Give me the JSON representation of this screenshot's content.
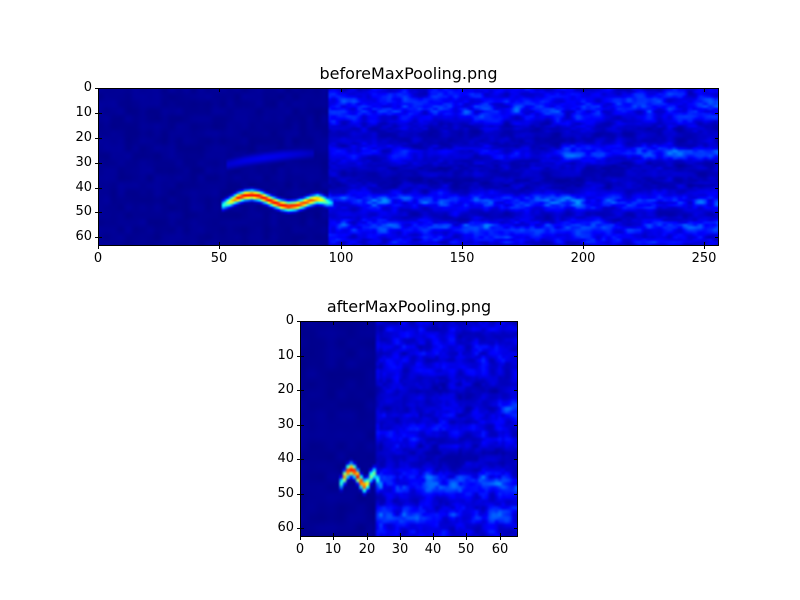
{
  "figure": {
    "background": "#ffffff",
    "frame_color": "#000000",
    "text_color": "#000000"
  },
  "chart_data": [
    {
      "type": "heatmap",
      "title": "beforeMaxPooling.png",
      "colormap": "jet",
      "xlabel": "",
      "ylabel": "",
      "x_ticks": [
        0,
        50,
        100,
        150,
        200,
        250
      ],
      "y_ticks": [
        0,
        10,
        20,
        30,
        40,
        50,
        60
      ],
      "x_range": [
        0,
        256
      ],
      "y_range": [
        0,
        63.5
      ],
      "y_axis_inverted": true,
      "grid_cols": 256,
      "grid_rows": 64,
      "background_value": 0.01,
      "clean_region": {
        "end_col": 95,
        "base": 0.01,
        "noise_amp": 0.02
      },
      "noise": {
        "seed": 41237,
        "start_col": 95,
        "scale_cols": 4.2,
        "scale_rows": 2.3,
        "ambient": 0.075,
        "floor": 0.35,
        "gain": 1.15,
        "sharpen": 1.4
      },
      "bands": [
        {
          "row": 5,
          "half_width": 4.0,
          "amp": 0.085
        },
        {
          "row": 11,
          "half_width": 2.5,
          "amp": 0.055
        },
        {
          "row": 26,
          "half_width": 2.2,
          "amp": 0.05
        },
        {
          "row": 26,
          "half_width": 1.6,
          "amp": 0.11,
          "from_col": 192
        },
        {
          "row": 45.5,
          "half_width": 2.4,
          "amp": 0.13
        },
        {
          "row": 56,
          "half_width": 2.2,
          "amp": 0.11
        },
        {
          "row": 61.5,
          "half_width": 1.8,
          "amp": 0.06
        }
      ],
      "blobs": [],
      "streaks": [
        {
          "sigma": 1.6,
          "points": [
            [
              53,
              30.5,
              0.08
            ],
            [
              60,
              29,
              0.1
            ],
            [
              68,
              27.8,
              0.11
            ],
            [
              76,
              26.8,
              0.1
            ],
            [
              83,
              26.2,
              0.08
            ],
            [
              88,
              26,
              0.06
            ]
          ]
        }
      ],
      "chirp": {
        "sigma": 1.25,
        "points": [
          [
            51,
            47.0,
            0.38
          ],
          [
            54,
            45.6,
            0.62
          ],
          [
            57,
            44.1,
            0.85
          ],
          [
            60,
            43.1,
            0.88
          ],
          [
            63,
            42.8,
            0.88
          ],
          [
            66,
            43.3,
            0.88
          ],
          [
            69,
            44.5,
            0.88
          ],
          [
            72,
            45.8,
            0.88
          ],
          [
            75,
            46.9,
            0.88
          ],
          [
            78,
            47.5,
            0.88
          ],
          [
            81,
            47.2,
            0.85
          ],
          [
            84,
            46.3,
            0.82
          ],
          [
            87,
            45.2,
            0.8
          ],
          [
            90,
            44.5,
            0.72
          ],
          [
            92,
            44.9,
            0.6
          ],
          [
            94,
            45.7,
            0.45
          ],
          [
            96,
            46.1,
            0.3
          ]
        ]
      }
    },
    {
      "type": "heatmap",
      "title": "afterMaxPooling.png",
      "colormap": "jet",
      "xlabel": "",
      "ylabel": "",
      "x_ticks": [
        0,
        10,
        20,
        30,
        40,
        50,
        60
      ],
      "y_ticks": [
        0,
        10,
        20,
        30,
        40,
        50,
        60
      ],
      "x_range": [
        0,
        65.5
      ],
      "y_range": [
        0,
        62.5
      ],
      "y_axis_inverted": true,
      "grid_cols": 66,
      "grid_rows": 63,
      "background_value": 0.01,
      "clean_region": {
        "end_col": 23,
        "base": 0.01,
        "noise_amp": 0.02
      },
      "noise": {
        "seed": 90211,
        "start_col": 23,
        "scale_cols": 2.4,
        "scale_rows": 1.8,
        "ambient": 0.075,
        "floor": 0.35,
        "gain": 1.15,
        "sharpen": 1.4
      },
      "bands": [
        {
          "row": 8,
          "half_width": 8.0,
          "amp": 0.045
        },
        {
          "row": 31,
          "half_width": 3.5,
          "amp": 0.05
        },
        {
          "row": 47,
          "half_width": 2.4,
          "amp": 0.13
        },
        {
          "row": 56.5,
          "half_width": 2.2,
          "amp": 0.11
        },
        {
          "row": 62.5,
          "half_width": 1.5,
          "amp": 0.05
        }
      ],
      "blobs": [
        {
          "col": 64,
          "row": 25.5,
          "amp": 0.14,
          "sx": 3.0,
          "sy": 1.8
        },
        {
          "col": 30,
          "row": 33,
          "amp": 0.05,
          "sx": 3.0,
          "sy": 2.0
        }
      ],
      "streaks": [],
      "chirp": {
        "sigma": 1.15,
        "points": [
          [
            12,
            46.8,
            0.42
          ],
          [
            13,
            45.0,
            0.72
          ],
          [
            14,
            43.4,
            0.85
          ],
          [
            15,
            42.8,
            0.88
          ],
          [
            16,
            43.4,
            0.88
          ],
          [
            17,
            44.8,
            0.88
          ],
          [
            18,
            46.4,
            0.85
          ],
          [
            19,
            47.6,
            0.82
          ],
          [
            20,
            46.9,
            0.6
          ],
          [
            21,
            44.9,
            0.5
          ],
          [
            21.8,
            43.7,
            0.5
          ],
          [
            22.6,
            44.8,
            0.45
          ],
          [
            23.2,
            46.3,
            0.38
          ],
          [
            24,
            47.4,
            0.28
          ]
        ]
      }
    }
  ]
}
